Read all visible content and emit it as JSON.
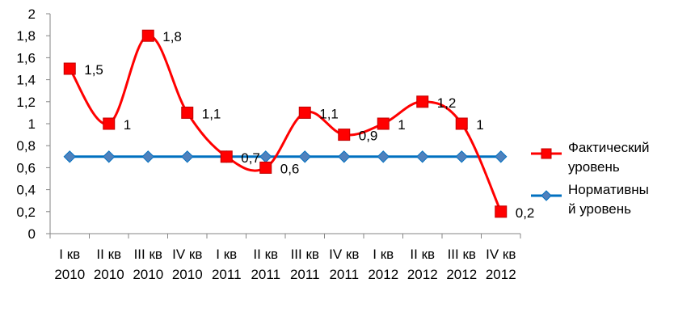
{
  "chart_data": {
    "type": "line",
    "categories": [
      "I кв 2010",
      "II кв 2010",
      "III кв 2010",
      "IV кв 2010",
      "I кв 2011",
      "II кв 2011",
      "III кв 2011",
      "IV кв 2011",
      "I кв 2012",
      "II кв 2012",
      "III кв 2012",
      "IV кв 2012"
    ],
    "category_lines": [
      [
        "I кв",
        "2010"
      ],
      [
        "II кв",
        "2010"
      ],
      [
        "III кв",
        "2010"
      ],
      [
        "IV кв",
        "2010"
      ],
      [
        "I кв",
        "2011"
      ],
      [
        "II кв",
        "2011"
      ],
      [
        "III кв",
        "2011"
      ],
      [
        "IV кв",
        "2011"
      ],
      [
        "I кв",
        "2012"
      ],
      [
        "II кв",
        "2012"
      ],
      [
        "III кв",
        "2012"
      ],
      [
        "IV кв",
        "2012"
      ]
    ],
    "series": [
      {
        "name": "Фактический уровень",
        "legend_lines": [
          "Фактический",
          "уровень"
        ],
        "color": "#FF0000",
        "marker": "square",
        "values": [
          1.5,
          1,
          1.8,
          1.1,
          0.7,
          0.6,
          1.1,
          0.9,
          1,
          1.2,
          1,
          0.2
        ],
        "data_labels": [
          "1,5",
          "1",
          "1,8",
          "1,1",
          "0,7",
          "0,6",
          "1,1",
          "0,9",
          "1",
          "1,2",
          "1",
          "0,2"
        ]
      },
      {
        "name": "Нормативный уровень",
        "legend_lines": [
          "Нормативны",
          "й уровень"
        ],
        "color": "#0070C0",
        "marker": "diamond",
        "values": [
          0.7,
          0.7,
          0.7,
          0.7,
          0.7,
          0.7,
          0.7,
          0.7,
          0.7,
          0.7,
          0.7,
          0.7
        ]
      }
    ],
    "ylim": [
      0,
      2
    ],
    "y_ticks": [
      0,
      0.2,
      0.4,
      0.6,
      0.8,
      1,
      1.2,
      1.4,
      1.6,
      1.8,
      2
    ],
    "y_tick_labels": [
      "0",
      "0,2",
      "0,4",
      "0,6",
      "0,8",
      "1",
      "1,2",
      "1,4",
      "1,6",
      "1,8",
      "2"
    ],
    "grid": false,
    "legend_position": "right",
    "xlabel": "",
    "ylabel": ""
  }
}
